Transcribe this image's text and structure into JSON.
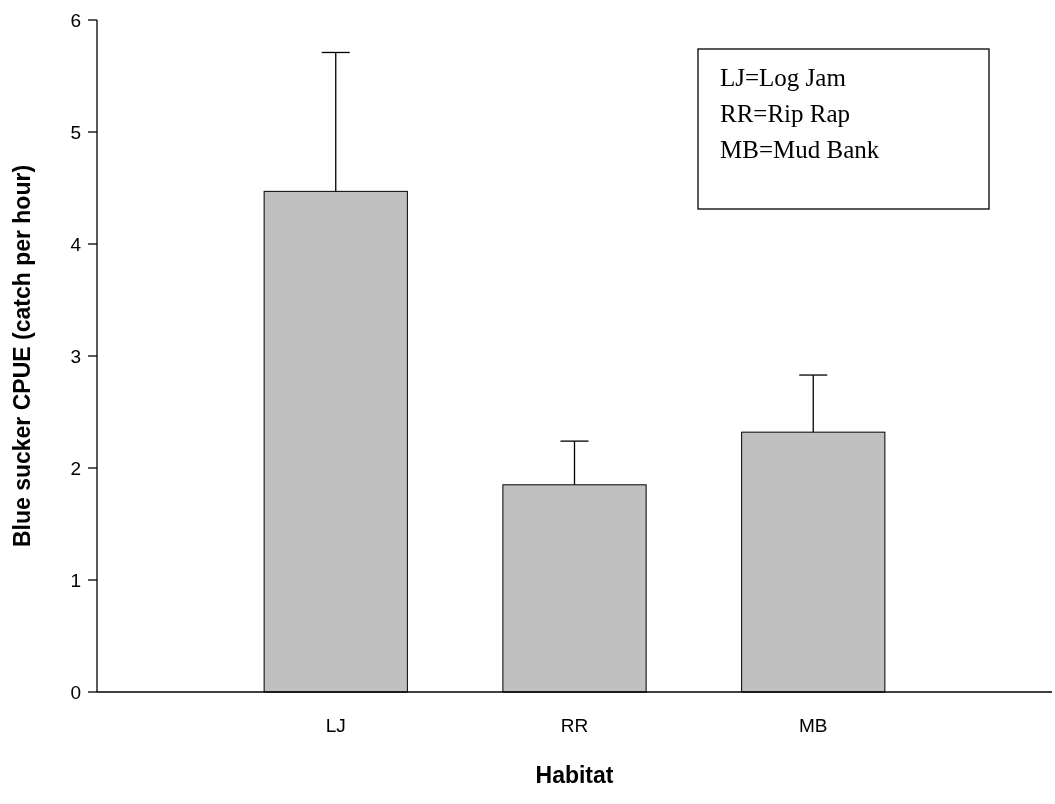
{
  "chart_data": {
    "type": "bar",
    "xlabel": "Habitat",
    "ylabel": "Blue sucker CPUE (catch per hour)",
    "categories": [
      "LJ",
      "RR",
      "MB"
    ],
    "values": [
      4.47,
      1.85,
      2.32
    ],
    "errors": [
      [
        4.47,
        5.71
      ],
      [
        1.85,
        2.24
      ],
      [
        2.32,
        2.83
      ]
    ],
    "color": "#c0c0c0",
    "ylim": [
      0,
      6
    ],
    "yticks": [
      0,
      1,
      2,
      3,
      4,
      5,
      6
    ],
    "annotations": [
      "LJ=Log Jam",
      "RR=Rip Rap",
      "MB=Mud Bank"
    ]
  }
}
